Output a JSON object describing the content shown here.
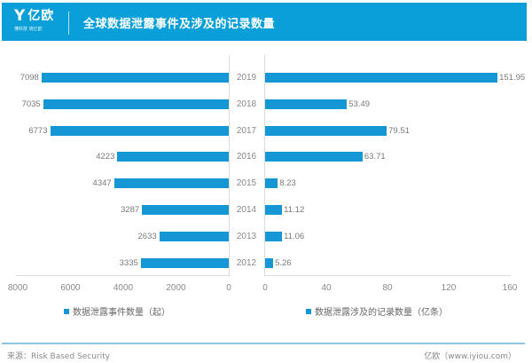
{
  "header": {
    "logo_text": "亿欧",
    "logo_mark": "Y",
    "logo_tagline": "懂科技 晓亿欧",
    "title": "全球数据泄露事件及涉及的记录数量",
    "background_color": "#0a9fd8"
  },
  "footer": {
    "source": "来源：Risk Based Security",
    "credit": "亿欧（www.iyiou.com）"
  },
  "legend": {
    "left": "数据泄露事件数量（起）",
    "right": "数据泄露涉及的记录数量（亿条）"
  },
  "axes": {
    "left_ticks": [
      "8000",
      "6000",
      "4000",
      "2000",
      "0"
    ],
    "right_ticks": [
      "0",
      "40",
      "80",
      "120",
      "160"
    ]
  },
  "years": [
    "2019",
    "2018",
    "2017",
    "2016",
    "2015",
    "2014",
    "2013",
    "2012"
  ],
  "left_values": [
    "7098",
    "7035",
    "6773",
    "4223",
    "4347",
    "3287",
    "2633",
    "3335"
  ],
  "right_values": [
    "151.95",
    "53.49",
    "79.51",
    "63.71",
    "8.23",
    "11.12",
    "11.06",
    "5.26"
  ],
  "chart_data": [
    {
      "type": "bar",
      "orientation": "horizontal",
      "title": "全球数据泄露事件及涉及的记录数量",
      "series": [
        {
          "name": "数据泄露事件数量（起）",
          "values": [
            7098,
            7035,
            6773,
            4223,
            4347,
            3287,
            2633,
            3335
          ]
        }
      ],
      "categories": [
        "2019",
        "2018",
        "2017",
        "2016",
        "2015",
        "2014",
        "2013",
        "2012"
      ],
      "xlim": [
        8000,
        0
      ],
      "xticks": [
        8000,
        6000,
        4000,
        2000,
        0
      ],
      "direction": "reversed (bars extend leftward)",
      "bar_color": "#1597d6",
      "legend_position": "bottom",
      "grid": false
    },
    {
      "type": "bar",
      "orientation": "horizontal",
      "title": "全球数据泄露事件及涉及的记录数量",
      "series": [
        {
          "name": "数据泄露涉及的记录数量（亿条）",
          "values": [
            151.95,
            53.49,
            79.51,
            63.71,
            8.23,
            11.12,
            11.06,
            5.26
          ]
        }
      ],
      "categories": [
        "2019",
        "2018",
        "2017",
        "2016",
        "2015",
        "2014",
        "2013",
        "2012"
      ],
      "xlim": [
        0,
        160
      ],
      "xticks": [
        0,
        40,
        80,
        120,
        160
      ],
      "bar_color": "#1597d6",
      "legend_position": "bottom",
      "grid": false
    }
  ]
}
